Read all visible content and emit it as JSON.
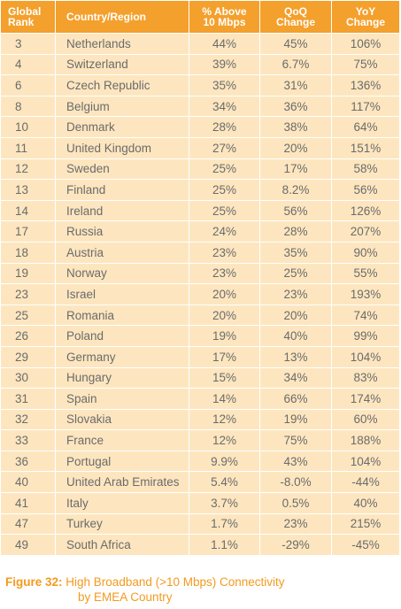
{
  "table": {
    "headers": {
      "rank": [
        "Global",
        "Rank"
      ],
      "country": "Country/Region",
      "pct": [
        "% Above",
        "10 Mbps"
      ],
      "qoq": [
        "QoQ",
        "Change"
      ],
      "yoy": [
        "YoY",
        "Change"
      ]
    },
    "rows": [
      {
        "rank": "3",
        "country": "Netherlands",
        "pct": "44%",
        "qoq": "45%",
        "yoy": "106%"
      },
      {
        "rank": "4",
        "country": "Switzerland",
        "pct": "39%",
        "qoq": "6.7%",
        "yoy": "75%"
      },
      {
        "rank": "6",
        "country": "Czech Republic",
        "pct": "35%",
        "qoq": "31%",
        "yoy": "136%"
      },
      {
        "rank": "8",
        "country": "Belgium",
        "pct": "34%",
        "qoq": "36%",
        "yoy": "117%"
      },
      {
        "rank": "10",
        "country": "Denmark",
        "pct": "28%",
        "qoq": "38%",
        "yoy": "64%"
      },
      {
        "rank": "11",
        "country": "United Kingdom",
        "pct": "27%",
        "qoq": "20%",
        "yoy": "151%"
      },
      {
        "rank": "12",
        "country": "Sweden",
        "pct": "25%",
        "qoq": "17%",
        "yoy": "58%"
      },
      {
        "rank": "13",
        "country": "Finland",
        "pct": "25%",
        "qoq": "8.2%",
        "yoy": "56%"
      },
      {
        "rank": "14",
        "country": "Ireland",
        "pct": "25%",
        "qoq": "56%",
        "yoy": "126%"
      },
      {
        "rank": "17",
        "country": "Russia",
        "pct": "24%",
        "qoq": "28%",
        "yoy": "207%"
      },
      {
        "rank": "18",
        "country": "Austria",
        "pct": "23%",
        "qoq": "35%",
        "yoy": "90%"
      },
      {
        "rank": "19",
        "country": "Norway",
        "pct": "23%",
        "qoq": "25%",
        "yoy": "55%"
      },
      {
        "rank": "23",
        "country": "Israel",
        "pct": "20%",
        "qoq": "23%",
        "yoy": "193%"
      },
      {
        "rank": "25",
        "country": "Romania",
        "pct": "20%",
        "qoq": "20%",
        "yoy": "74%"
      },
      {
        "rank": "26",
        "country": "Poland",
        "pct": "19%",
        "qoq": "40%",
        "yoy": "99%"
      },
      {
        "rank": "29",
        "country": "Germany",
        "pct": "17%",
        "qoq": "13%",
        "yoy": "104%"
      },
      {
        "rank": "30",
        "country": "Hungary",
        "pct": "15%",
        "qoq": "34%",
        "yoy": "83%"
      },
      {
        "rank": "31",
        "country": "Spain",
        "pct": "14%",
        "qoq": "66%",
        "yoy": "174%"
      },
      {
        "rank": "32",
        "country": "Slovakia",
        "pct": "12%",
        "qoq": "19%",
        "yoy": "60%"
      },
      {
        "rank": "33",
        "country": "France",
        "pct": "12%",
        "qoq": "75%",
        "yoy": "188%"
      },
      {
        "rank": "36",
        "country": "Portugal",
        "pct": "9.9%",
        "qoq": "43%",
        "yoy": "104%"
      },
      {
        "rank": "40",
        "country": "United Arab Emirates",
        "pct": "5.4%",
        "qoq": "-8.0%",
        "yoy": "-44%"
      },
      {
        "rank": "41",
        "country": "Italy",
        "pct": "3.7%",
        "qoq": "0.5%",
        "yoy": "40%"
      },
      {
        "rank": "47",
        "country": "Turkey",
        "pct": "1.7%",
        "qoq": "23%",
        "yoy": "215%"
      },
      {
        "rank": "49",
        "country": "South Africa",
        "pct": "1.1%",
        "qoq": "-29%",
        "yoy": "-45%"
      }
    ]
  },
  "caption": {
    "label": "Figure 32:",
    "line1": "High Broadband (>10 Mbps) Connectivity",
    "line2": "by EMEA Country"
  },
  "colors": {
    "header_bg": "#f4a02c",
    "row_bg": "#fde6bf",
    "row_text": "#6b6b6b",
    "caption_text": "#f39a1e"
  }
}
